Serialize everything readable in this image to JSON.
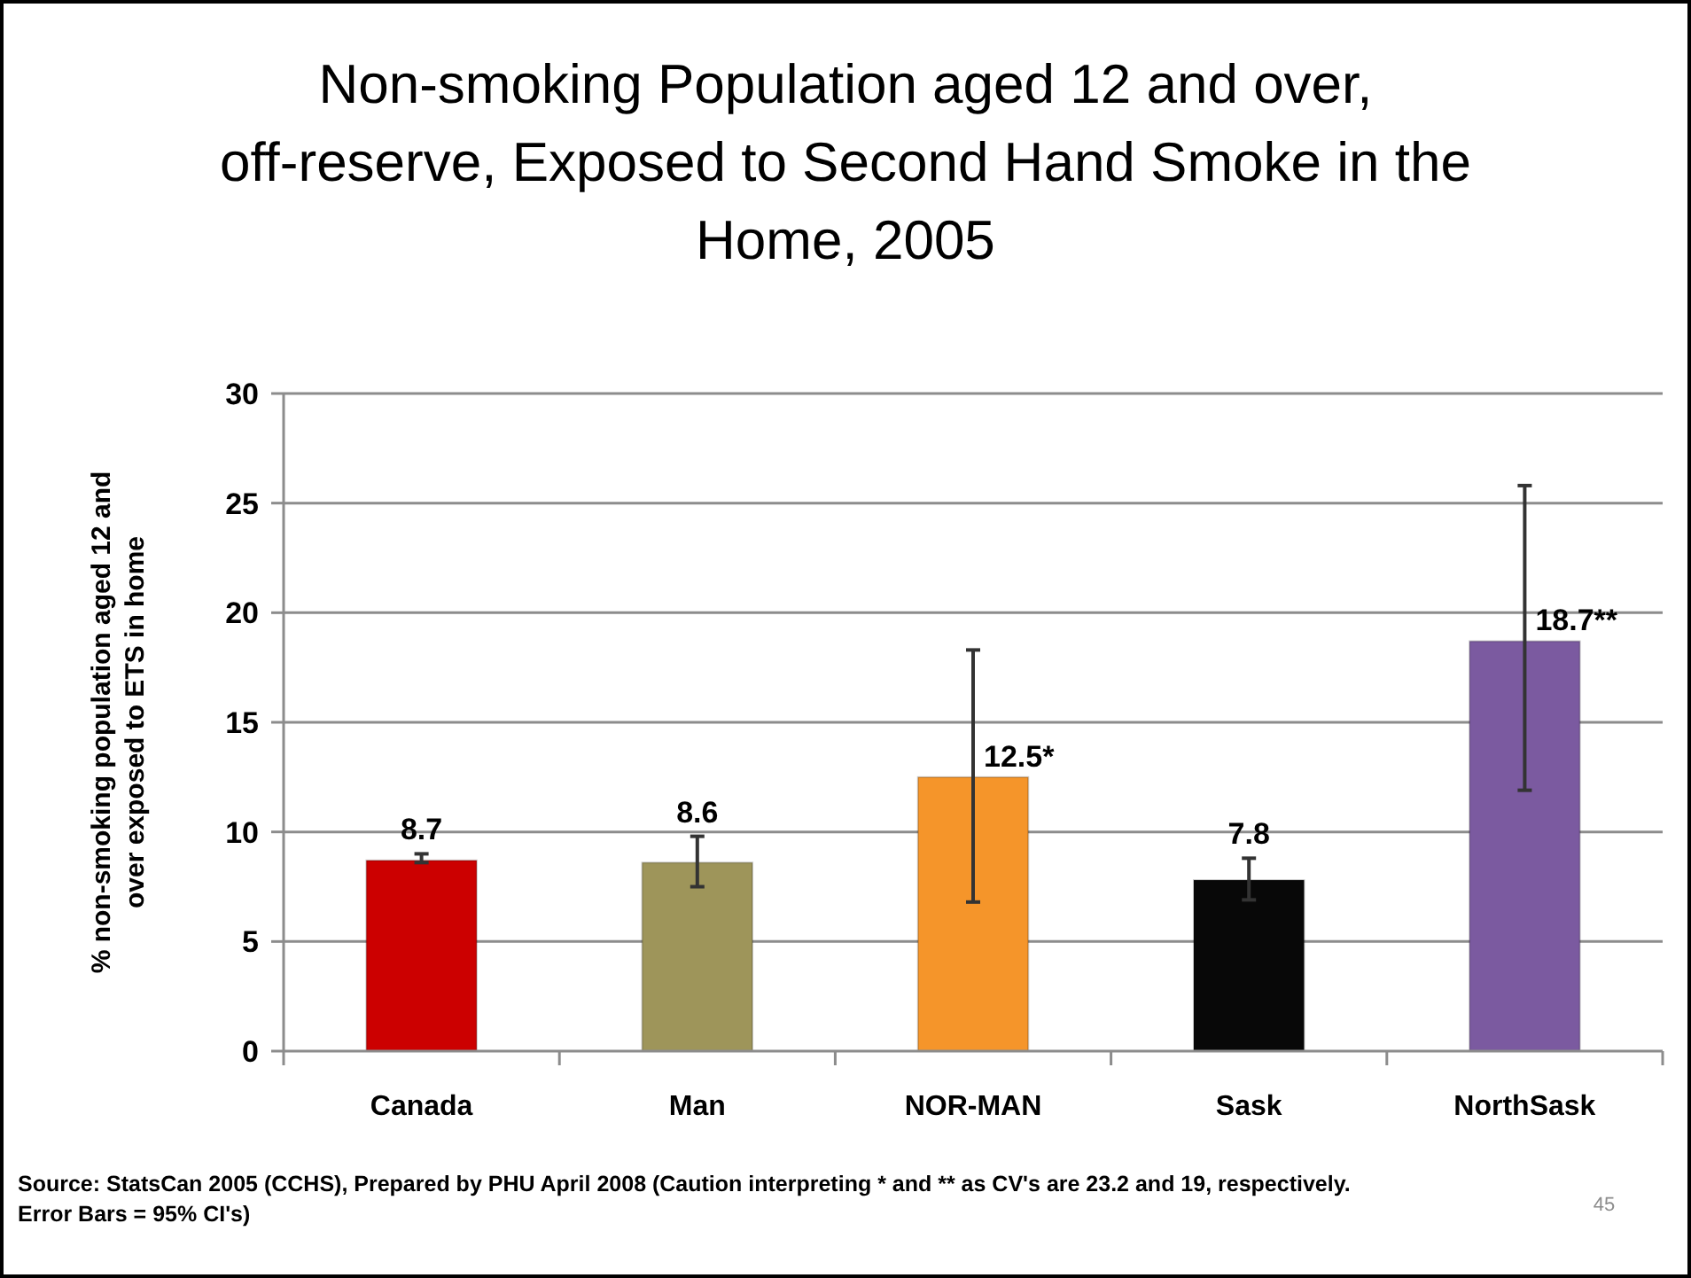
{
  "chart_data": {
    "type": "bar",
    "title": "Non-smoking Population aged 12 and over, off-reserve, Exposed to Second Hand Smoke in the Home, 2005",
    "ylabel": "% non-smoking population aged 12 and over exposed to ETS in home",
    "categories": [
      "Canada",
      "Man",
      "NOR-MAN",
      "Sask",
      "NorthSask"
    ],
    "values": [
      8.7,
      8.6,
      12.5,
      7.8,
      18.7
    ],
    "colors": [
      "#cc0000",
      "#9e955a",
      "#f5952a",
      "#080808",
      "#7b5aa0"
    ],
    "errors": [
      [
        8.6,
        9.0
      ],
      [
        7.5,
        9.8
      ],
      [
        6.8,
        18.3
      ],
      [
        6.9,
        8.8
      ],
      [
        11.9,
        25.8
      ]
    ],
    "value_labels": [
      "8.7",
      "8.6",
      "12.5*",
      "7.8",
      "18.7**"
    ],
    "ylim": [
      0,
      30
    ],
    "yticks": [
      0,
      5,
      10,
      15,
      20,
      25,
      30
    ],
    "grid": "y",
    "annotations": [
      "Source: StatsCan 2005 (CCHS), Prepared by PHU April 2008 (Caution interpreting * and ** as CV's are 23.2 and 19, respectively. Error Bars = 95% CI's)",
      "45"
    ]
  }
}
